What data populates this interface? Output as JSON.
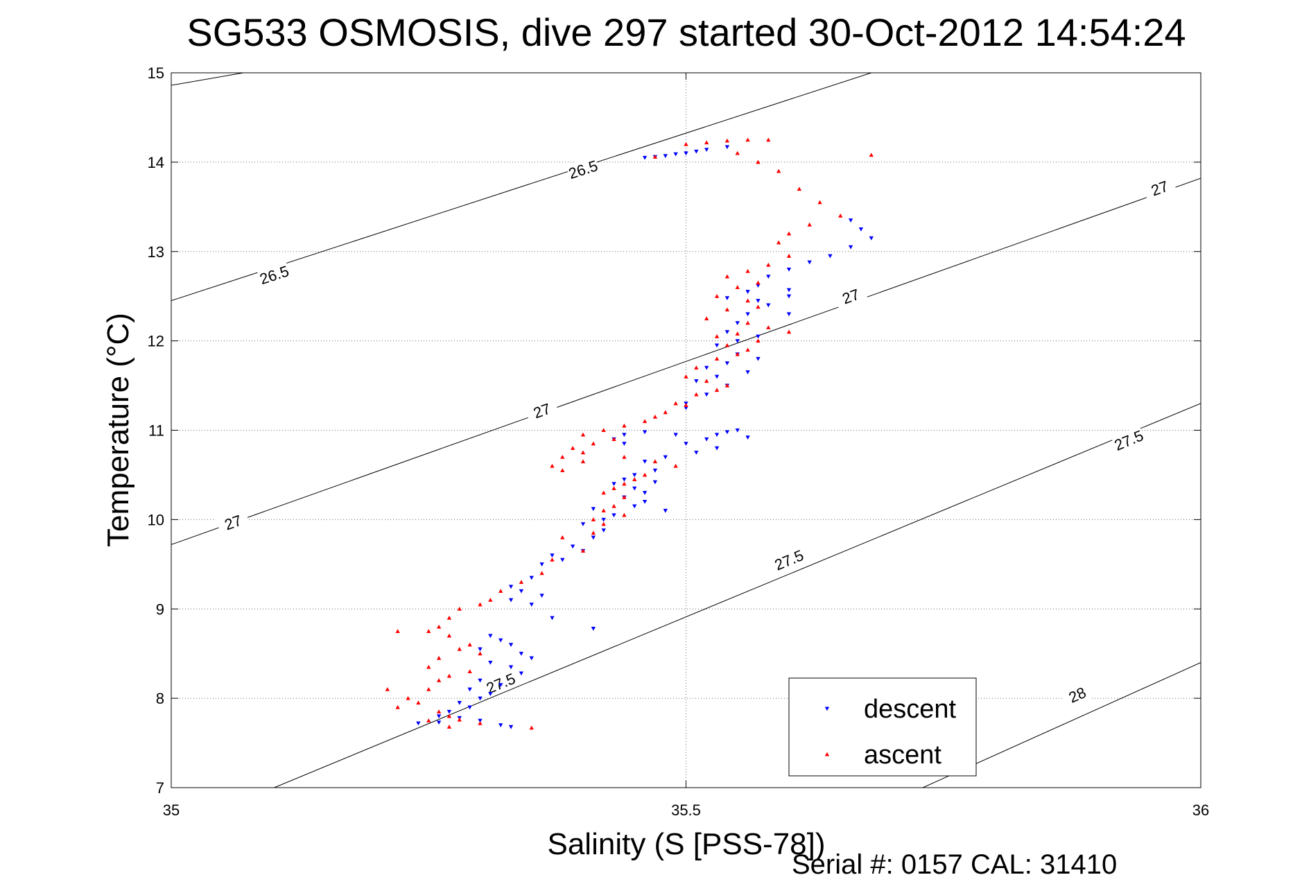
{
  "chart_data": {
    "type": "scatter",
    "title": "SG533 OSMOSIS, dive 297 started 30-Oct-2012 14:54:24",
    "xlabel": "Salinity (S [PSS-78])",
    "ylabel": "Temperature (°C)",
    "xlim": [
      35,
      36
    ],
    "ylim": [
      7,
      15
    ],
    "x_ticks": [
      35,
      35.5,
      36
    ],
    "x_tick_labels": [
      "35",
      "35.5",
      "36"
    ],
    "y_ticks": [
      7,
      8,
      9,
      10,
      11,
      12,
      13,
      14,
      15
    ],
    "y_tick_labels": [
      "7",
      "8",
      "9",
      "10",
      "11",
      "12",
      "13",
      "14",
      "15"
    ],
    "grid": true,
    "legend_position": "bottom-right",
    "footer": "Serial #: 0157  CAL: 31410",
    "colors": {
      "descent": "#0000ff",
      "ascent": "#ff0000",
      "contour": "#000000"
    },
    "contours": [
      {
        "level": "26.5",
        "points": [
          [
            35,
            14.86
          ],
          [
            35.07,
            15.0
          ]
        ],
        "labels": []
      },
      {
        "level": "26.5",
        "points": [
          [
            35,
            12.45
          ],
          [
            35.68,
            15.0
          ]
        ],
        "labels": [
          {
            "s": 35.1,
            "t": 12.74
          },
          {
            "s": 35.4,
            "t": 13.92
          }
        ]
      },
      {
        "level": "27",
        "points": [
          [
            35,
            9.72
          ],
          [
            36,
            13.82
          ]
        ],
        "labels": [
          {
            "s": 35.06,
            "t": 9.97
          },
          {
            "s": 35.36,
            "t": 11.22
          },
          {
            "s": 35.66,
            "t": 12.5
          },
          {
            "s": 35.96,
            "t": 13.71
          }
        ]
      },
      {
        "level": "27.5",
        "points": [
          [
            35.1,
            7.0
          ],
          [
            36,
            11.3
          ]
        ],
        "labels": [
          {
            "s": 35.32,
            "t": 8.17
          },
          {
            "s": 35.6,
            "t": 9.55
          },
          {
            "s": 35.93,
            "t": 10.89
          }
        ]
      },
      {
        "level": "28",
        "points": [
          [
            35.73,
            7.0
          ],
          [
            36,
            8.4
          ]
        ],
        "labels": [
          {
            "s": 35.88,
            "t": 8.04
          }
        ]
      }
    ],
    "series": [
      {
        "name": "descent",
        "marker": "triangle-down",
        "points": [
          [
            35.46,
            14.05
          ],
          [
            35.48,
            14.07
          ],
          [
            35.5,
            14.1
          ],
          [
            35.52,
            14.14
          ],
          [
            35.54,
            14.17
          ],
          [
            35.47,
            14.06
          ],
          [
            35.49,
            14.09
          ],
          [
            35.51,
            14.12
          ],
          [
            35.66,
            13.35
          ],
          [
            35.67,
            13.25
          ],
          [
            35.68,
            13.15
          ],
          [
            35.66,
            13.05
          ],
          [
            35.64,
            12.95
          ],
          [
            35.62,
            12.88
          ],
          [
            35.6,
            12.8
          ],
          [
            35.58,
            12.72
          ],
          [
            35.57,
            12.62
          ],
          [
            35.6,
            12.57
          ],
          [
            35.56,
            12.55
          ],
          [
            35.6,
            12.5
          ],
          [
            35.54,
            12.48
          ],
          [
            35.57,
            12.45
          ],
          [
            35.58,
            12.4
          ],
          [
            35.56,
            12.3
          ],
          [
            35.6,
            12.3
          ],
          [
            35.55,
            12.2
          ],
          [
            35.54,
            12.1
          ],
          [
            35.57,
            12.05
          ],
          [
            35.55,
            12.0
          ],
          [
            35.53,
            11.95
          ],
          [
            35.55,
            11.85
          ],
          [
            35.57,
            11.8
          ],
          [
            35.54,
            11.75
          ],
          [
            35.52,
            11.7
          ],
          [
            35.56,
            11.65
          ],
          [
            35.53,
            11.6
          ],
          [
            35.51,
            11.55
          ],
          [
            35.54,
            11.5
          ],
          [
            35.52,
            11.4
          ],
          [
            35.5,
            11.3
          ],
          [
            35.5,
            11.25
          ],
          [
            35.55,
            11.0
          ],
          [
            35.54,
            10.98
          ],
          [
            35.53,
            10.95
          ],
          [
            35.56,
            10.92
          ],
          [
            35.52,
            10.9
          ],
          [
            35.49,
            10.95
          ],
          [
            35.46,
            10.98
          ],
          [
            35.44,
            10.95
          ],
          [
            35.43,
            10.9
          ],
          [
            35.44,
            10.85
          ],
          [
            35.5,
            10.85
          ],
          [
            35.53,
            10.8
          ],
          [
            35.51,
            10.75
          ],
          [
            35.48,
            10.7
          ],
          [
            35.46,
            10.65
          ],
          [
            35.47,
            10.55
          ],
          [
            35.45,
            10.5
          ],
          [
            35.44,
            10.45
          ],
          [
            35.47,
            10.42
          ],
          [
            35.45,
            10.35
          ],
          [
            35.43,
            10.4
          ],
          [
            35.46,
            10.3
          ],
          [
            35.44,
            10.25
          ],
          [
            35.46,
            10.2
          ],
          [
            35.45,
            10.15
          ],
          [
            35.48,
            10.1
          ],
          [
            35.43,
            10.05
          ],
          [
            35.42,
            10.0
          ],
          [
            35.4,
            9.95
          ],
          [
            35.41,
            10.12
          ],
          [
            35.42,
            9.88
          ],
          [
            35.41,
            9.8
          ],
          [
            35.39,
            9.7
          ],
          [
            35.4,
            9.65
          ],
          [
            35.37,
            9.6
          ],
          [
            35.38,
            9.55
          ],
          [
            35.36,
            9.5
          ],
          [
            35.35,
            9.35
          ],
          [
            35.33,
            9.25
          ],
          [
            35.34,
            9.2
          ],
          [
            35.36,
            9.15
          ],
          [
            35.33,
            9.1
          ],
          [
            35.35,
            9.05
          ],
          [
            35.37,
            8.9
          ],
          [
            35.41,
            8.78
          ],
          [
            35.31,
            8.7
          ],
          [
            35.32,
            8.65
          ],
          [
            35.33,
            8.6
          ],
          [
            35.3,
            8.55
          ],
          [
            35.34,
            8.5
          ],
          [
            35.35,
            8.45
          ],
          [
            35.31,
            8.4
          ],
          [
            35.33,
            8.35
          ],
          [
            35.34,
            8.28
          ],
          [
            35.3,
            8.2
          ],
          [
            35.32,
            8.15
          ],
          [
            35.29,
            8.1
          ],
          [
            35.31,
            8.05
          ],
          [
            35.3,
            8.0
          ],
          [
            35.28,
            7.95
          ],
          [
            35.29,
            7.9
          ],
          [
            35.27,
            7.85
          ],
          [
            35.26,
            7.8
          ],
          [
            35.28,
            7.78
          ],
          [
            35.3,
            7.75
          ],
          [
            35.32,
            7.7
          ],
          [
            35.24,
            7.72
          ],
          [
            35.26,
            7.73
          ],
          [
            35.33,
            7.68
          ]
        ]
      },
      {
        "name": "ascent",
        "marker": "triangle-up",
        "points": [
          [
            35.47,
            14.06
          ],
          [
            35.5,
            14.2
          ],
          [
            35.52,
            14.22
          ],
          [
            35.54,
            14.24
          ],
          [
            35.56,
            14.25
          ],
          [
            35.58,
            14.25
          ],
          [
            35.55,
            14.1
          ],
          [
            35.57,
            14.0
          ],
          [
            35.59,
            13.9
          ],
          [
            35.61,
            13.7
          ],
          [
            35.63,
            13.55
          ],
          [
            35.65,
            13.4
          ],
          [
            35.62,
            13.3
          ],
          [
            35.6,
            13.2
          ],
          [
            35.59,
            13.1
          ],
          [
            35.6,
            12.95
          ],
          [
            35.58,
            12.85
          ],
          [
            35.56,
            12.78
          ],
          [
            35.54,
            12.72
          ],
          [
            35.57,
            12.65
          ],
          [
            35.55,
            12.6
          ],
          [
            35.53,
            12.5
          ],
          [
            35.56,
            12.45
          ],
          [
            35.57,
            12.38
          ],
          [
            35.54,
            12.35
          ],
          [
            35.52,
            12.25
          ],
          [
            35.56,
            12.2
          ],
          [
            35.58,
            12.15
          ],
          [
            35.6,
            12.1
          ],
          [
            35.55,
            12.08
          ],
          [
            35.53,
            12.05
          ],
          [
            35.57,
            12.0
          ],
          [
            35.54,
            11.95
          ],
          [
            35.56,
            11.9
          ],
          [
            35.55,
            11.85
          ],
          [
            35.53,
            11.8
          ],
          [
            35.51,
            11.7
          ],
          [
            35.5,
            11.6
          ],
          [
            35.52,
            11.55
          ],
          [
            35.54,
            11.5
          ],
          [
            35.53,
            11.45
          ],
          [
            35.51,
            11.4
          ],
          [
            35.49,
            11.3
          ],
          [
            35.5,
            11.28
          ],
          [
            35.48,
            11.2
          ],
          [
            35.47,
            11.15
          ],
          [
            35.46,
            11.1
          ],
          [
            35.44,
            11.05
          ],
          [
            35.42,
            11.0
          ],
          [
            35.4,
            10.95
          ],
          [
            35.43,
            10.9
          ],
          [
            35.41,
            10.85
          ],
          [
            35.39,
            10.8
          ],
          [
            35.4,
            10.75
          ],
          [
            35.38,
            10.7
          ],
          [
            35.4,
            10.65
          ],
          [
            35.37,
            10.6
          ],
          [
            35.38,
            10.55
          ],
          [
            35.44,
            10.7
          ],
          [
            35.47,
            10.65
          ],
          [
            35.49,
            10.6
          ],
          [
            35.46,
            10.5
          ],
          [
            35.45,
            10.45
          ],
          [
            35.44,
            10.4
          ],
          [
            35.43,
            10.35
          ],
          [
            35.42,
            10.3
          ],
          [
            35.44,
            10.25
          ],
          [
            35.43,
            10.15
          ],
          [
            35.42,
            10.1
          ],
          [
            35.41,
            10.0
          ],
          [
            35.44,
            10.05
          ],
          [
            35.42,
            9.95
          ],
          [
            35.41,
            9.85
          ],
          [
            35.38,
            9.8
          ],
          [
            35.4,
            9.65
          ],
          [
            35.37,
            9.55
          ],
          [
            35.36,
            9.4
          ],
          [
            35.34,
            9.3
          ],
          [
            35.32,
            9.2
          ],
          [
            35.31,
            9.1
          ],
          [
            35.3,
            9.05
          ],
          [
            35.28,
            9.0
          ],
          [
            35.27,
            8.9
          ],
          [
            35.26,
            8.8
          ],
          [
            35.25,
            8.75
          ],
          [
            35.27,
            8.7
          ],
          [
            35.29,
            8.6
          ],
          [
            35.28,
            8.55
          ],
          [
            35.3,
            8.5
          ],
          [
            35.26,
            8.45
          ],
          [
            35.25,
            8.35
          ],
          [
            35.29,
            8.3
          ],
          [
            35.27,
            8.25
          ],
          [
            35.26,
            8.2
          ],
          [
            35.25,
            8.1
          ],
          [
            35.23,
            8.0
          ],
          [
            35.24,
            7.95
          ],
          [
            35.22,
            7.9
          ],
          [
            35.26,
            7.85
          ],
          [
            35.27,
            7.8
          ],
          [
            35.25,
            7.75
          ],
          [
            35.28,
            7.76
          ],
          [
            35.3,
            7.72
          ],
          [
            35.27,
            7.68
          ],
          [
            35.35,
            7.67
          ],
          [
            35.22,
            8.75
          ],
          [
            35.21,
            8.1
          ],
          [
            35.68,
            14.08
          ]
        ]
      }
    ]
  }
}
